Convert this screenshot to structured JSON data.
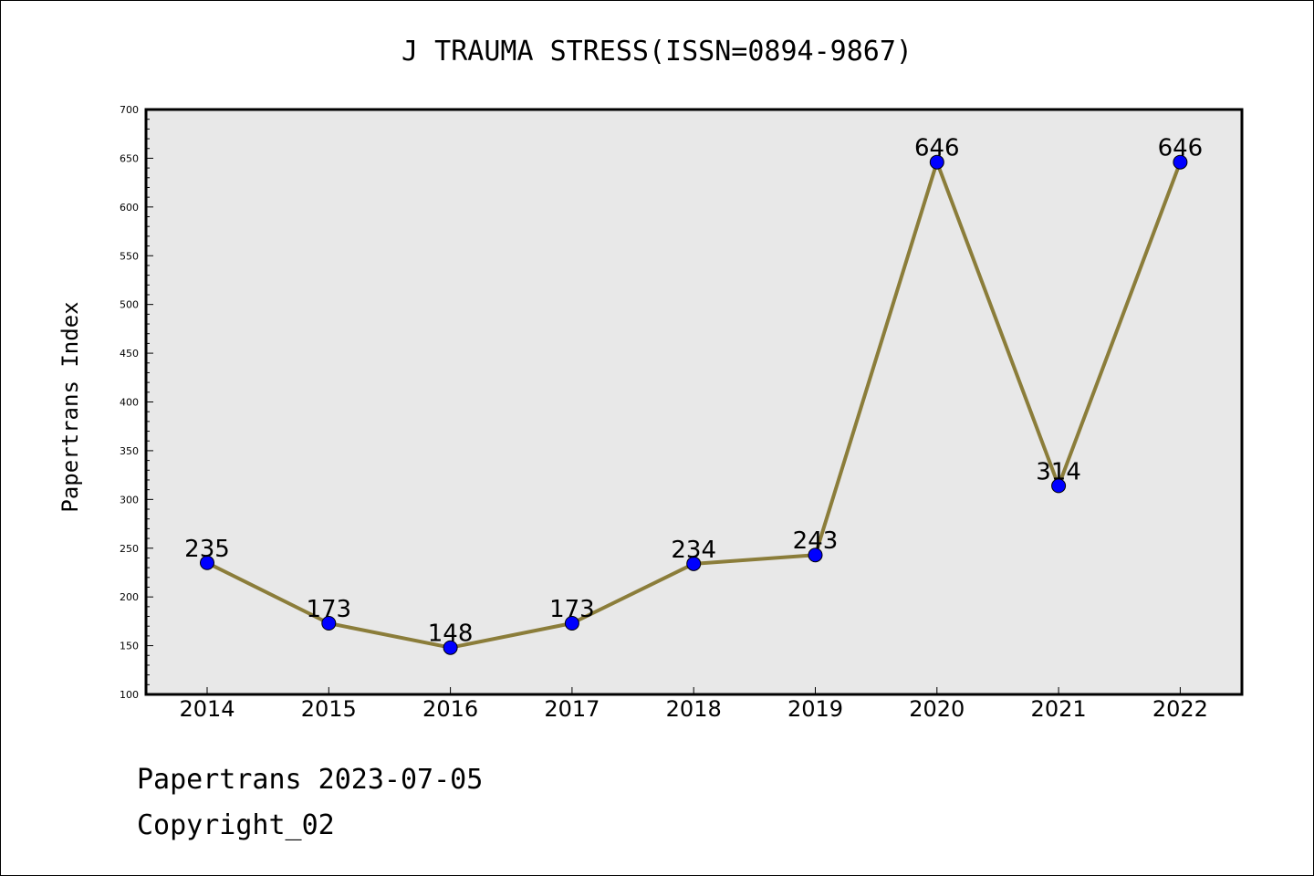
{
  "chart_data": {
    "type": "line",
    "title": "J TRAUMA STRESS(ISSN=0894-9867)",
    "xlabel": "",
    "ylabel": "Papertrans Index",
    "x": [
      "2014",
      "2015",
      "2016",
      "2017",
      "2018",
      "2019",
      "2020",
      "2021",
      "2022"
    ],
    "values": [
      235,
      173,
      148,
      173,
      234,
      243,
      646,
      314,
      646
    ],
    "data_labels": [
      "235",
      "173",
      "148",
      "173",
      "234",
      "243",
      "646",
      "314",
      "646"
    ],
    "ylim": [
      100,
      700
    ],
    "yticks": [
      100,
      150,
      200,
      250,
      300,
      350,
      400,
      450,
      500,
      550,
      600,
      650,
      700
    ],
    "grid": false,
    "legend": "none",
    "line_color": "#8b7d3a",
    "marker_color": "#0000ff",
    "plot_background": "#e8e8e8"
  },
  "footer": {
    "line1": "Papertrans 2023-07-05",
    "line2": "Copyright_02"
  }
}
